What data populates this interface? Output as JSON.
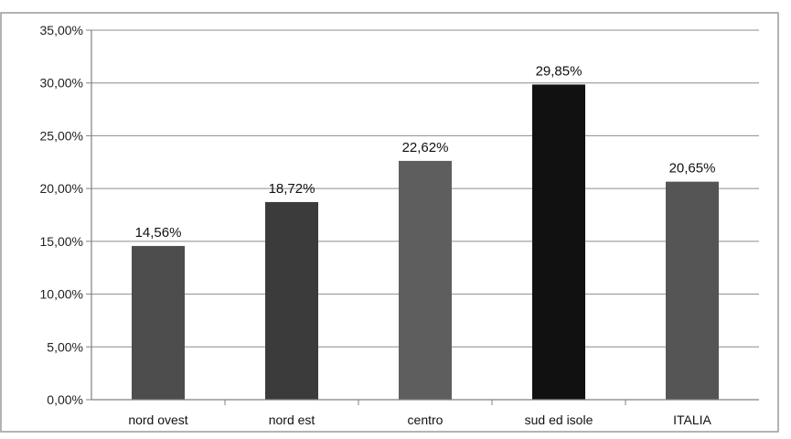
{
  "chart_data": {
    "type": "bar",
    "title": "",
    "xlabel": "",
    "ylabel": "",
    "categories": [
      "nord ovest",
      "nord est",
      "centro",
      "sud ed isole",
      "ITALIA"
    ],
    "values": [
      14.56,
      18.72,
      22.62,
      29.85,
      20.65
    ],
    "value_labels": [
      "14,56%",
      "18,72%",
      "22,62%",
      "29,85%",
      "20,65%"
    ],
    "bar_colors": [
      "#4d4d4d",
      "#3b3b3b",
      "#5e5e5e",
      "#111111",
      "#555555"
    ],
    "ylim": [
      0,
      35
    ],
    "yticks": [
      0,
      5,
      10,
      15,
      20,
      25,
      30,
      35
    ],
    "ytick_labels": [
      "0,00%",
      "5,00%",
      "10,00%",
      "15,00%",
      "20,00%",
      "25,00%",
      "30,00%",
      "35,00%"
    ],
    "grid": true,
    "legend": "none"
  }
}
